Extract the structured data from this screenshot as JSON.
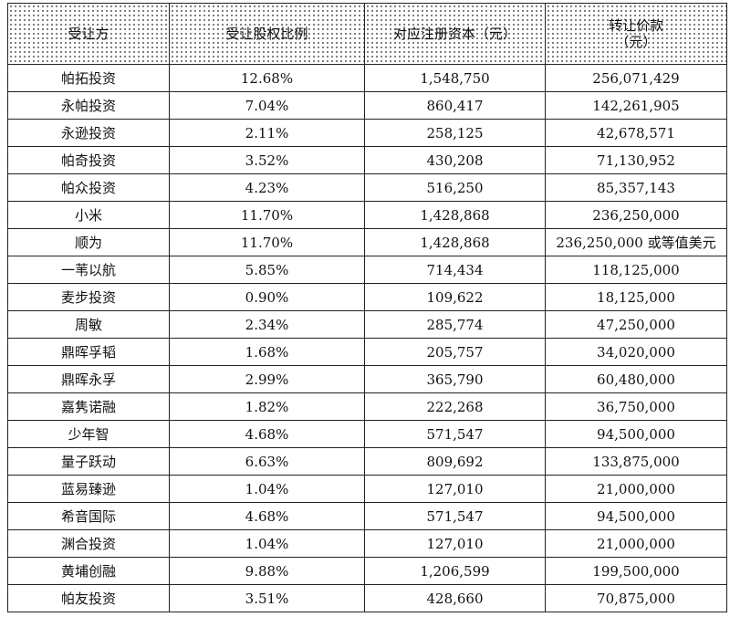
{
  "headers": [
    "受让方",
    "受让股权比例",
    "对应注册资本（元）",
    "转让价款",
    "（元）"
  ],
  "rows": [
    [
      "帕拓投资",
      "12.68%",
      "1,548,750",
      "256,071,429"
    ],
    [
      "永帕投资",
      "7.04%",
      "860,417",
      "142,261,905"
    ],
    [
      "永逊投资",
      "2.11%",
      "258,125",
      "42,678,571"
    ],
    [
      "帕奇投资",
      "3.52%",
      "430,208",
      "71,130,952"
    ],
    [
      "帕众投资",
      "4.23%",
      "516,250",
      "85,357,143"
    ],
    [
      "小米",
      "11.70%",
      "1,428,868",
      "236,250,000"
    ],
    [
      "顺为",
      "11.70%",
      "1,428,868",
      "236,250,000 或等值美元"
    ],
    [
      "一苇以航",
      "5.85%",
      "714,434",
      "118,125,000"
    ],
    [
      "麦步投资",
      "0.90%",
      "109,622",
      "18,125,000"
    ],
    [
      "周敏",
      "2.34%",
      "285,774",
      "47,250,000"
    ],
    [
      "鼎晖孚韬",
      "1.68%",
      "205,757",
      "34,020,000"
    ],
    [
      "鼎晖永孚",
      "2.99%",
      "365,790",
      "60,480,000"
    ],
    [
      "嘉隽诺融",
      "1.82%",
      "222,268",
      "36,750,000"
    ],
    [
      "少年智",
      "4.68%",
      "571,547",
      "94,500,000"
    ],
    [
      "量子跃动",
      "6.63%",
      "809,692",
      "133,875,000"
    ],
    [
      "蓝易臻逊",
      "1.04%",
      "127,010",
      "21,000,000"
    ],
    [
      "希音国际",
      "4.68%",
      "571,547",
      "94,500,000"
    ],
    [
      "渊合投资",
      "1.04%",
      "127,010",
      "21,000,000"
    ],
    [
      "黄埔创融",
      "9.88%",
      "1,206,599",
      "199,500,000"
    ],
    [
      "帕友投资",
      "3.51%",
      "428,660",
      "70,875,000"
    ]
  ]
}
